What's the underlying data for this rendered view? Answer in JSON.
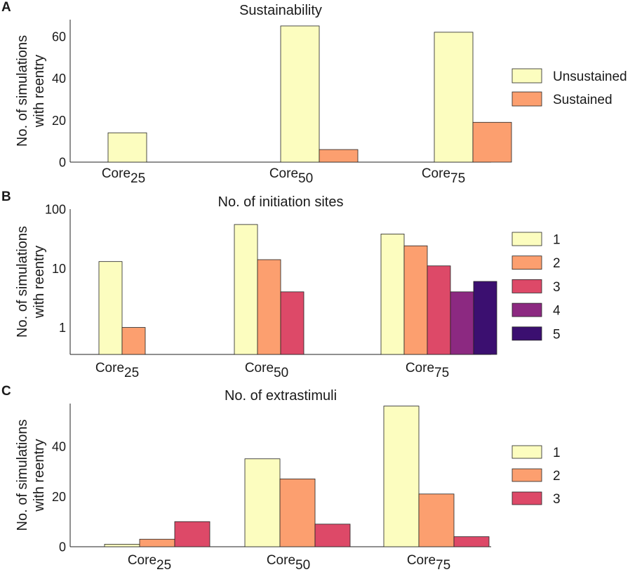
{
  "colors": {
    "c1": "#fcfdbf",
    "c2": "#fc9f6f",
    "c3": "#dd4968",
    "c4": "#8c2981",
    "c5": "#3b0f70",
    "axis": "#222222",
    "text": "#1a1a1a"
  },
  "chart_data": [
    {
      "id": "A",
      "panel_label": "A",
      "type": "bar",
      "title": "Sustainability",
      "ylabel": [
        "No. of simulations",
        "with reentry"
      ],
      "yscale": "linear",
      "ylim": [
        0,
        68
      ],
      "yticks": [
        0,
        20,
        40,
        60
      ],
      "ytick_labels": [
        "0",
        "20",
        "40",
        "60"
      ],
      "categories": [
        {
          "base": "Core",
          "sub": "25"
        },
        {
          "base": "Core",
          "sub": "50"
        },
        {
          "base": "Core",
          "sub": "75"
        }
      ],
      "legend_position": "right",
      "series": [
        {
          "name": "Unsustained",
          "color": "#fcfdbf",
          "values": [
            14,
            65,
            62
          ]
        },
        {
          "name": "Sustained",
          "color": "#fc9f6f",
          "values": [
            0,
            6,
            19
          ]
        }
      ]
    },
    {
      "id": "B",
      "panel_label": "B",
      "type": "bar",
      "title": "No. of initiation sites",
      "ylabel": [
        "No. of simulations",
        "with reentry"
      ],
      "yscale": "log",
      "ylim": [
        0.35,
        100
      ],
      "yticks": [
        1,
        10,
        100
      ],
      "ytick_labels": [
        "1",
        "10",
        "100"
      ],
      "categories": [
        {
          "base": "Core",
          "sub": "25"
        },
        {
          "base": "Core",
          "sub": "50"
        },
        {
          "base": "Core",
          "sub": "75"
        }
      ],
      "legend_position": "right",
      "series": [
        {
          "name": "1",
          "color": "#fcfdbf",
          "values": [
            13,
            55,
            38
          ]
        },
        {
          "name": "2",
          "color": "#fc9f6f",
          "values": [
            1,
            14,
            24
          ]
        },
        {
          "name": "3",
          "color": "#dd4968",
          "values": [
            0,
            4,
            11
          ]
        },
        {
          "name": "4",
          "color": "#8c2981",
          "values": [
            0,
            0,
            4
          ]
        },
        {
          "name": "5",
          "color": "#3b0f70",
          "values": [
            0,
            0,
            6
          ]
        }
      ]
    },
    {
      "id": "C",
      "panel_label": "C",
      "type": "bar",
      "title": "No. of extrastimuli",
      "ylabel": [
        "No. of simulations",
        "with reentry"
      ],
      "yscale": "linear",
      "ylim": [
        0,
        57
      ],
      "yticks": [
        0,
        20,
        40
      ],
      "ytick_labels": [
        "0",
        "20",
        "40"
      ],
      "categories": [
        {
          "base": "Core",
          "sub": "25"
        },
        {
          "base": "Core",
          "sub": "50"
        },
        {
          "base": "Core",
          "sub": "75"
        }
      ],
      "legend_position": "right",
      "series": [
        {
          "name": "1",
          "color": "#fcfdbf",
          "values": [
            1,
            35,
            56
          ]
        },
        {
          "name": "2",
          "color": "#fc9f6f",
          "values": [
            3,
            27,
            21
          ]
        },
        {
          "name": "3",
          "color": "#dd4968",
          "values": [
            10,
            9,
            4
          ]
        }
      ]
    }
  ]
}
